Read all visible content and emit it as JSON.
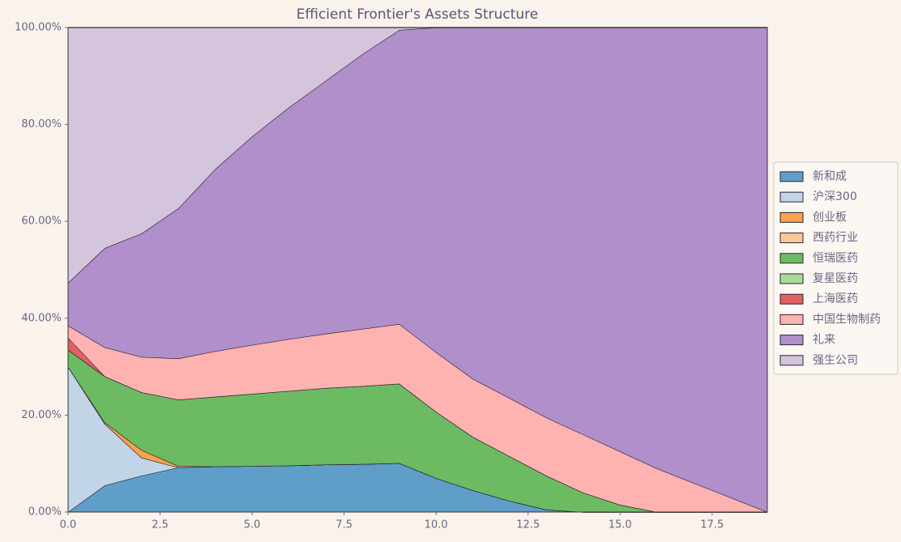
{
  "chart_data": {
    "type": "stacked_area",
    "title": "Efficient Frontier's Assets Structure",
    "x": [
      0,
      1,
      2,
      3,
      4,
      5,
      6,
      7,
      8,
      9,
      10,
      11,
      12,
      13,
      14,
      15,
      16,
      17,
      18,
      19
    ],
    "series": [
      {
        "name": "新和成",
        "color": "#5f9ec8",
        "values": [
          0,
          5.5,
          7.5,
          9.2,
          9.4,
          9.5,
          9.6,
          9.8,
          9.9,
          10.1,
          7,
          4.5,
          2.3,
          0.5,
          0,
          0,
          0,
          0,
          0,
          0
        ]
      },
      {
        "name": "沪深300",
        "color": "#c2d4e8",
        "values": [
          30,
          12.7,
          3.7,
          0,
          0,
          0,
          0,
          0,
          0,
          0,
          0,
          0,
          0,
          0,
          0,
          0,
          0,
          0,
          0,
          0
        ]
      },
      {
        "name": "创业板",
        "color": "#fba24f",
        "values": [
          0,
          0.3,
          1.6,
          0.3,
          0,
          0,
          0,
          0,
          0,
          0,
          0,
          0,
          0,
          0,
          0,
          0,
          0,
          0,
          0,
          0
        ]
      },
      {
        "name": "西药行业",
        "color": "#fcc897",
        "values": [
          0,
          0,
          0,
          0,
          0,
          0,
          0,
          0,
          0,
          0,
          0,
          0,
          0,
          0,
          0,
          0,
          0,
          0,
          0,
          0
        ]
      },
      {
        "name": "恒瑞医药",
        "color": "#6cbb63",
        "values": [
          3.5,
          9.5,
          11.9,
          13.7,
          14.4,
          14.9,
          15.4,
          15.8,
          16.1,
          16.4,
          13.7,
          11,
          9.2,
          7,
          4,
          1.5,
          0,
          0,
          0,
          0
        ]
      },
      {
        "name": "复星医药",
        "color": "#a8dc9a",
        "values": [
          0,
          0,
          0,
          0,
          0,
          0,
          0,
          0,
          0,
          0,
          0,
          0,
          0,
          0,
          0,
          0,
          0,
          0,
          0,
          0
        ]
      },
      {
        "name": "上海医药",
        "color": "#e06161",
        "values": [
          2.5,
          0,
          0,
          0,
          0,
          0,
          0,
          0,
          0,
          0,
          0,
          0,
          0,
          0,
          0,
          0,
          0,
          0,
          0,
          0
        ]
      },
      {
        "name": "中国生物制药",
        "color": "#feb3b0",
        "values": [
          2.5,
          6,
          7.3,
          8.5,
          9.4,
          10.1,
          10.7,
          11.2,
          11.8,
          12.3,
          12.3,
          12,
          12,
          12,
          12,
          11,
          9,
          6,
          3,
          0
        ]
      },
      {
        "name": "礼来",
        "color": "#b08fca",
        "values": [
          8.8,
          20.5,
          25.5,
          31,
          37.6,
          43,
          47.8,
          52.2,
          56.7,
          60.7,
          67,
          72.5,
          76.5,
          80.5,
          84,
          87.5,
          91,
          94,
          97,
          100
        ]
      },
      {
        "name": "强生公司",
        "color": "#d5c5dc",
        "values": [
          52.7,
          45.5,
          42.5,
          37.3,
          29.2,
          22.5,
          16.5,
          11,
          5.5,
          0.5,
          0,
          0,
          0,
          0,
          0,
          0,
          0,
          0,
          0,
          0
        ]
      }
    ],
    "xlim": [
      0,
      19
    ],
    "xticks": [
      {
        "value": 0,
        "label": "0.0"
      },
      2.5,
      {
        "value": 5,
        "label": "5.0"
      },
      7.5,
      {
        "value": 10,
        "label": "10.0"
      },
      12.5,
      {
        "value": 15,
        "label": "15.0"
      },
      17.5
    ],
    "ylim": [
      0,
      100
    ],
    "yticks": [
      {
        "value": 0,
        "label": "0.00%"
      },
      {
        "value": 20,
        "label": "20.00%"
      },
      {
        "value": 40,
        "label": "40.00%"
      },
      {
        "value": 60,
        "label": "60.00%"
      },
      {
        "value": 80,
        "label": "80.00%"
      },
      {
        "value": 100,
        "label": "100.00%"
      }
    ],
    "legend": "right"
  }
}
